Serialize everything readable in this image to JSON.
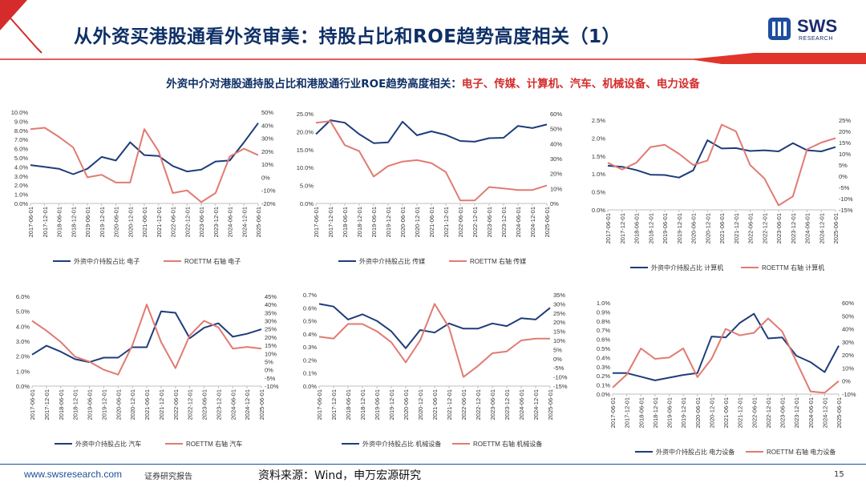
{
  "header": {
    "title": "从外资买港股通看外资审美：持股占比和ROE趋势高度相关（1）",
    "logo_text": "SWS",
    "logo_sub": "RESEARCH"
  },
  "subtitle": {
    "prefix": "外资中介对港股通持股占比和港股通行业ROE趋势高度相关：",
    "highlight": "电子、传媒、计算机、汽车、机械设备、电力设备"
  },
  "footer": {
    "url": "www.swsresearch.com",
    "report": "证券研究报告",
    "source": "资料来源：Wind，申万宏源研究",
    "page": "15"
  },
  "colors": {
    "blue_series": "#1f3d7a",
    "red_series": "#e07b72",
    "title": "#0e2f66",
    "accent": "#d52b2b"
  },
  "chart_data": [
    {
      "type": "line",
      "name": "电子",
      "x": [
        "2017-06-01",
        "2017-12-01",
        "2018-06-01",
        "2018-12-01",
        "2019-06-01",
        "2019-12-01",
        "2020-06-01",
        "2020-12-01",
        "2021-06-01",
        "2021-12-01",
        "2022-06-01",
        "2022-12-01",
        "2023-06-01",
        "2023-12-01",
        "2024-06-01",
        "2024-12-01",
        "2025-06-01"
      ],
      "left_ticks": [
        "10.0%",
        "9.0%",
        "8.0%",
        "7.0%",
        "6.0%",
        "5.0%",
        "4.0%",
        "3.0%",
        "2.0%",
        "1.0%",
        "0.0%"
      ],
      "right_ticks": [
        "50%",
        "40%",
        "30%",
        "20%",
        "10%",
        "0%",
        "-10%",
        "-20%"
      ],
      "left_range": [
        0,
        10
      ],
      "right_range": [
        -20,
        50
      ],
      "series": [
        {
          "name": "外资中介持股占比 电子",
          "axis": "left",
          "values": [
            4.2,
            4.0,
            3.8,
            3.2,
            3.8,
            5.1,
            4.7,
            6.7,
            5.3,
            5.2,
            4.1,
            3.5,
            3.7,
            4.6,
            4.7,
            6.7,
            8.8
          ]
        },
        {
          "name": "ROETTM 右轴 电子",
          "axis": "right",
          "values": [
            37,
            38,
            31,
            23,
            0,
            2,
            -4,
            -4,
            37,
            20,
            -12,
            -10,
            -19,
            -12,
            16,
            22,
            17
          ]
        }
      ]
    },
    {
      "type": "line",
      "name": "传媒",
      "x": [
        "2017-06-01",
        "2017-12-01",
        "2018-06-01",
        "2018-12-01",
        "2019-06-01",
        "2019-12-01",
        "2020-06-01",
        "2020-12-01",
        "2021-06-01",
        "2021-12-01",
        "2022-06-01",
        "2022-12-01",
        "2023-06-01",
        "2023-12-01",
        "2024-06-01",
        "2024-12-01",
        "2025-06-01"
      ],
      "left_ticks": [
        "25.0%",
        "20.0%",
        "15.0%",
        "10.0%",
        "5.0%",
        "0.0%"
      ],
      "right_ticks": [
        "60%",
        "50%",
        "40%",
        "30%",
        "20%",
        "10%",
        "0%"
      ],
      "left_range": [
        0,
        25
      ],
      "right_range": [
        0,
        60
      ],
      "series": [
        {
          "name": "外资中介持股占比 传媒",
          "axis": "left",
          "values": [
            19.3,
            23.2,
            22.5,
            19.3,
            16.8,
            17.0,
            22.8,
            19.0,
            20.1,
            19.1,
            17.4,
            17.2,
            18.2,
            18.3,
            21.6,
            21.0,
            22.0
          ]
        },
        {
          "name": "ROETTM 右轴 传媒",
          "axis": "right",
          "values": [
            54,
            55,
            39,
            35,
            18,
            25,
            28,
            29,
            27,
            21,
            2,
            2,
            11,
            10,
            9,
            9,
            12
          ]
        }
      ]
    },
    {
      "type": "line",
      "name": "计算机",
      "x": [
        "2017-06-01",
        "2017-12-01",
        "2018-06-01",
        "2018-12-01",
        "2019-06-01",
        "2019-12-01",
        "2020-06-01",
        "2020-12-01",
        "2021-06-01",
        "2021-12-01",
        "2022-06-01",
        "2022-12-01",
        "2023-06-01",
        "2023-12-01",
        "2024-06-01",
        "2024-12-01",
        "2025-06-01"
      ],
      "left_ticks": [
        "2.5%",
        "2.0%",
        "1.5%",
        "1.0%",
        "0.5%",
        "0.0%"
      ],
      "right_ticks": [
        "25%",
        "20%",
        "15%",
        "10%",
        "5%",
        "0%",
        "-5%",
        "-10%",
        "-15%"
      ],
      "left_range": [
        0,
        2.5
      ],
      "right_range": [
        -15,
        25
      ],
      "series": [
        {
          "name": "外资中介持股占比 计算机",
          "axis": "left",
          "values": [
            1.23,
            1.2,
            1.11,
            0.98,
            0.97,
            0.9,
            1.1,
            1.94,
            1.71,
            1.72,
            1.64,
            1.66,
            1.63,
            1.86,
            1.66,
            1.63,
            1.75
          ]
        },
        {
          "name": "ROETTM 右轴 计算机",
          "axis": "right",
          "values": [
            6,
            3,
            6,
            13,
            14,
            10,
            5,
            7,
            23,
            20,
            5,
            -1,
            -13,
            -9,
            12,
            15,
            17
          ]
        }
      ]
    },
    {
      "type": "line",
      "name": "汽车",
      "x": [
        "2017-06-01",
        "2017-12-01",
        "2018-06-01",
        "2018-12-01",
        "2019-06-01",
        "2019-12-01",
        "2020-06-01",
        "2020-12-01",
        "2021-06-01",
        "2021-12-01",
        "2022-06-01",
        "2022-12-01",
        "2023-06-01",
        "2023-12-01",
        "2024-06-01",
        "2024-12-01",
        "2025-06-01"
      ],
      "left_ticks": [
        "6.0%",
        "5.0%",
        "4.0%",
        "3.0%",
        "2.0%",
        "1.0%",
        "0.0%"
      ],
      "right_ticks": [
        "45%",
        "40%",
        "35%",
        "30%",
        "25%",
        "20%",
        "15%",
        "10%",
        "5%",
        "0%",
        "-5%",
        "-10%"
      ],
      "left_range": [
        0,
        6
      ],
      "right_range": [
        -10,
        45
      ],
      "series": [
        {
          "name": "外资中介持股占比 汽车",
          "axis": "left",
          "values": [
            2.1,
            2.7,
            2.3,
            1.8,
            1.6,
            1.9,
            1.9,
            2.6,
            2.6,
            5.0,
            4.9,
            3.2,
            3.9,
            4.2,
            3.3,
            3.5,
            3.8
          ]
        },
        {
          "name": "ROETTM 右轴 汽车",
          "axis": "right",
          "values": [
            30,
            24,
            17,
            8,
            5,
            0,
            -3,
            15,
            40,
            17,
            1,
            21,
            30,
            26,
            13,
            14,
            13
          ]
        }
      ]
    },
    {
      "type": "line",
      "name": "机械设备",
      "x": [
        "2017-06-01",
        "2017-12-01",
        "2018-06-01",
        "2018-12-01",
        "2019-06-01",
        "2019-12-01",
        "2020-06-01",
        "2020-12-01",
        "2021-06-01",
        "2021-12-01",
        "2022-06-01",
        "2022-12-01",
        "2023-06-01",
        "2023-12-01",
        "2024-06-01",
        "2024-12-01",
        "2025-06-01"
      ],
      "left_ticks": [
        "0.7%",
        "0.6%",
        "0.5%",
        "0.4%",
        "0.3%",
        "0.2%",
        "0.1%",
        "0.0%"
      ],
      "right_ticks": [
        "35%",
        "30%",
        "25%",
        "20%",
        "15%",
        "10%",
        "5%",
        "0%",
        "-5%",
        "-10%",
        "-15%"
      ],
      "left_range": [
        0,
        0.7
      ],
      "right_range": [
        -15,
        35
      ],
      "series": [
        {
          "name": "外资中介持股占比 机械设备",
          "axis": "left",
          "values": [
            0.63,
            0.61,
            0.51,
            0.55,
            0.5,
            0.42,
            0.29,
            0.43,
            0.41,
            0.48,
            0.44,
            0.44,
            0.48,
            0.46,
            0.52,
            0.51,
            0.6
          ]
        },
        {
          "name": "ROETTM 右轴 机械设备",
          "axis": "right",
          "values": [
            12,
            11,
            19,
            19,
            15,
            9,
            -2,
            10,
            30,
            17,
            -10,
            -4,
            3,
            4,
            10,
            11,
            11
          ]
        }
      ]
    },
    {
      "type": "line",
      "name": "电力设备",
      "x": [
        "2017-06-01",
        "2017-12-01",
        "2018-06-01",
        "2018-12-01",
        "2019-06-01",
        "2019-12-01",
        "2020-06-01",
        "2020-12-01",
        "2021-06-01",
        "2021-12-01",
        "2022-06-01",
        "2022-12-01",
        "2023-06-01",
        "2023-12-01",
        "2024-06-01",
        "2024-12-01",
        "2025-06-01"
      ],
      "left_ticks": [
        "1.0%",
        "0.9%",
        "0.8%",
        "0.7%",
        "0.6%",
        "0.5%",
        "0.4%",
        "0.3%",
        "0.2%",
        "0.1%",
        "0.0%"
      ],
      "right_ticks": [
        "60%",
        "50%",
        "40%",
        "30%",
        "20%",
        "10%",
        "0%",
        "-10%"
      ],
      "left_range": [
        0,
        1.0
      ],
      "right_range": [
        -10,
        60
      ],
      "series": [
        {
          "name": "外资中介持股占比 电力设备",
          "axis": "left",
          "values": [
            0.23,
            0.23,
            0.19,
            0.15,
            0.18,
            0.21,
            0.23,
            0.63,
            0.62,
            0.78,
            0.88,
            0.61,
            0.62,
            0.42,
            0.35,
            0.24,
            0.53
          ]
        },
        {
          "name": "ROETTM 右轴 电力设备",
          "axis": "right",
          "values": [
            -5,
            5,
            25,
            17,
            18,
            25,
            3,
            17,
            40,
            35,
            37,
            48,
            38,
            15,
            -8,
            -9,
            0
          ]
        }
      ]
    }
  ]
}
